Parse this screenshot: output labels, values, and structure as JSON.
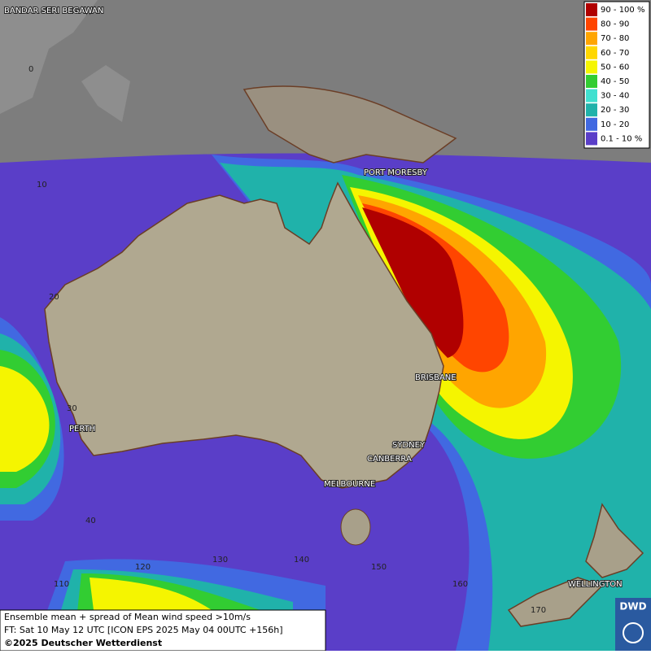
{
  "legend": [
    {
      "label": "90 - 100 %",
      "color": "#b00000"
    },
    {
      "label": "80 - 90",
      "color": "#ff4500"
    },
    {
      "label": "70 - 80",
      "color": "#ffa500"
    },
    {
      "label": "60 - 70",
      "color": "#ffd700"
    },
    {
      "label": "50 - 60",
      "color": "#f5f500"
    },
    {
      "label": "40 - 50",
      "color": "#32cd32"
    },
    {
      "label": "30 - 40",
      "color": "#40e0d0"
    },
    {
      "label": "20 - 30",
      "color": "#20b2aa"
    },
    {
      "label": "10 - 20",
      "color": "#4169e1"
    },
    {
      "label": "0.1 - 10 %",
      "color": "#5a3ec8"
    }
  ],
  "cities": [
    "BANDAR SERI BEGAWAN",
    "PORT MORESBY",
    "BRISBANE",
    "SYDNEY",
    "CANBERRA",
    "MELBOURNE",
    "PERTH",
    "WELLINGTON"
  ],
  "latitudes": [
    "0",
    "10",
    "20",
    "30",
    "40"
  ],
  "longitudes": [
    "110",
    "120",
    "130",
    "140",
    "150",
    "160",
    "170"
  ],
  "footer": [
    "Ensemble mean + spread of Mean wind speed >10m/s",
    "FT: Sat 10 May 12 UTC [ICON EPS 2025 May 04 00UTC +156h]",
    "©2025 Deutscher Wetterdienst"
  ],
  "logo": "DWD"
}
